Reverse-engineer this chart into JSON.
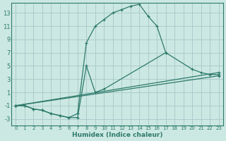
{
  "xlabel": "Humidex (Indice chaleur)",
  "background_color": "#cce8e2",
  "grid_color": "#aacccc",
  "line_color": "#2d7a6a",
  "spine_color": "#2d7a6a",
  "xlim": [
    -0.5,
    23.5
  ],
  "ylim": [
    -4,
    14.5
  ],
  "xticks": [
    0,
    1,
    2,
    3,
    4,
    5,
    6,
    7,
    8,
    9,
    10,
    11,
    12,
    13,
    14,
    15,
    16,
    17,
    18,
    19,
    20,
    21,
    22,
    23
  ],
  "yticks": [
    -3,
    -1,
    1,
    3,
    5,
    7,
    9,
    11,
    13
  ],
  "series": [
    {
      "x": [
        0,
        1,
        2,
        3,
        4,
        5,
        6,
        7,
        8,
        9,
        10,
        11,
        12,
        13,
        14,
        15,
        16,
        17
      ],
      "y": [
        -1,
        -1,
        -1.5,
        -1.7,
        -2.2,
        -2.5,
        -2.8,
        -2.2,
        8.5,
        11,
        12,
        13,
        13.5,
        14,
        14.3,
        12.5,
        11,
        7
      ]
    },
    {
      "x": [
        0,
        1,
        2,
        3,
        4,
        5,
        6,
        7,
        8,
        9,
        10,
        17,
        20,
        21,
        22,
        23
      ],
      "y": [
        -1,
        -1,
        -1.5,
        -1.7,
        -2.2,
        -2.5,
        -2.8,
        -2.8,
        5,
        1,
        1.5,
        7,
        4.5,
        4,
        3.7,
        3.7
      ]
    },
    {
      "x": [
        0,
        23
      ],
      "y": [
        -1,
        3.5
      ]
    },
    {
      "x": [
        0,
        23
      ],
      "y": [
        -1,
        4.0
      ]
    }
  ]
}
